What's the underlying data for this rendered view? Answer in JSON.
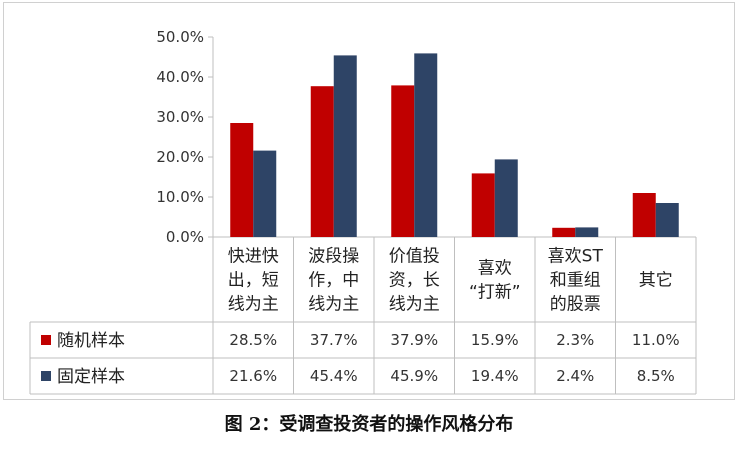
{
  "caption": "图 2：受调查投资者的操作风格分布",
  "chart_data": {
    "type": "bar",
    "categories": [
      [
        "快进快",
        "出，短",
        "线为主"
      ],
      [
        "波段操",
        "作，中",
        "线为主"
      ],
      [
        "价值投",
        "资，长",
        "线为主"
      ],
      [
        "喜欢",
        "“打新”"
      ],
      [
        "喜欢ST",
        "和重组",
        "的股票"
      ],
      [
        "其它"
      ]
    ],
    "series": [
      {
        "name": "随机样本",
        "color": "#C00000",
        "values": [
          28.5,
          37.7,
          37.9,
          15.9,
          2.3,
          11.0
        ],
        "labels": [
          "28.5%",
          "37.7%",
          "37.9%",
          "15.9%",
          "2.3%",
          "11.0%"
        ]
      },
      {
        "name": "固定样本",
        "color": "#2E4466",
        "values": [
          21.6,
          45.4,
          45.9,
          19.4,
          2.4,
          8.5
        ],
        "labels": [
          "21.6%",
          "45.4%",
          "45.9%",
          "19.4%",
          "2.4%",
          "8.5%"
        ]
      }
    ],
    "y_ticks": [
      "0.0%",
      "10.0%",
      "20.0%",
      "30.0%",
      "40.0%",
      "50.0%"
    ],
    "ylim": [
      0,
      50
    ],
    "grid": false,
    "legend": "data-table"
  }
}
